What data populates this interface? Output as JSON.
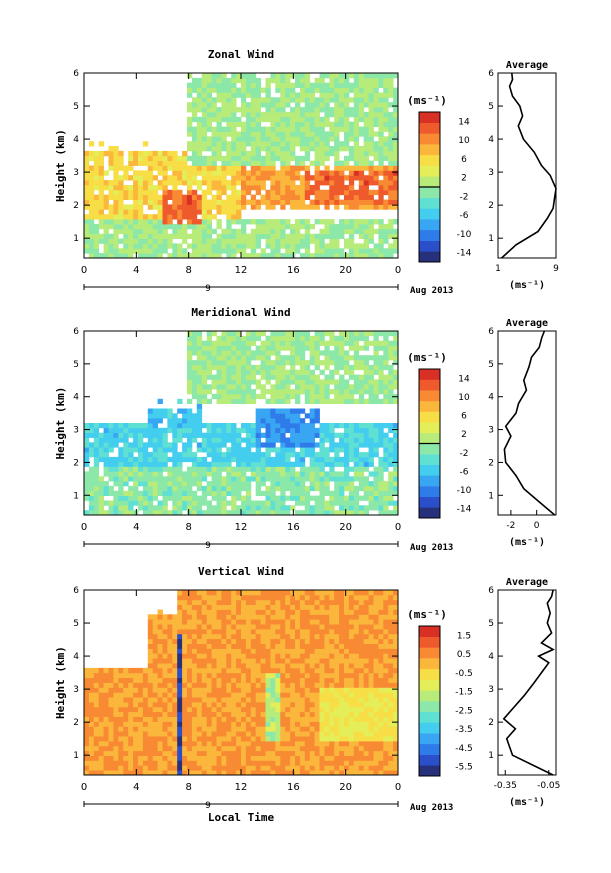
{
  "chart_data": [
    {
      "type": "heatmap",
      "title": "Zonal Wind",
      "ylabel": "Height (km)",
      "xticks": [
        "0",
        "4",
        "8",
        "12",
        "16",
        "20",
        "0"
      ],
      "xlim": [
        0,
        24
      ],
      "yticks": [
        "1",
        "2",
        "3",
        "4",
        "5",
        "6"
      ],
      "ylim": [
        0.4,
        6
      ],
      "date_marker": "9",
      "date_label": "Aug 2013",
      "colorbar": {
        "unit": "(ms⁻¹)",
        "ticks": [
          "14",
          "10",
          "6",
          "2",
          "-2",
          "-6",
          "-10",
          "-14"
        ],
        "range": [
          -16,
          16
        ],
        "contour": 0
      },
      "field": {
        "description_values": "wind speed (ms^-1) by local time and height",
        "regions": [
          {
            "x": [
              0,
              24
            ],
            "y": [
              0.4,
              1.6
            ],
            "value": 0
          },
          {
            "x": [
              0,
              12
            ],
            "y": [
              1.6,
              4.0
            ],
            "value": 6
          },
          {
            "x": [
              6,
              9
            ],
            "y": [
              1.4,
              2.5
            ],
            "value": 12
          },
          {
            "x": [
              12,
              24
            ],
            "y": [
              1.8,
              3.2
            ],
            "value": 9
          },
          {
            "x": [
              17,
              24
            ],
            "y": [
              2.0,
              3.0
            ],
            "value": 12
          },
          {
            "x": [
              8,
              24
            ],
            "y": [
              3.2,
              6.0
            ],
            "value": 0
          }
        ]
      },
      "average_profile": {
        "title": "Average",
        "xlabel": "(ms⁻¹)",
        "xticks": [
          "1",
          "9"
        ],
        "xlim": [
          1,
          9
        ],
        "ylim": [
          0.4,
          6
        ],
        "yticks": [
          "1",
          "2",
          "3",
          "4",
          "5",
          "6"
        ],
        "x": [
          1.5,
          3.5,
          6.5,
          7.8,
          8.6,
          8.8,
          9.0,
          8.2,
          7.0,
          6.0,
          4.5,
          3.8,
          4.4,
          4.0,
          3.0,
          2.6,
          3.0,
          2.9
        ],
        "y": [
          0.4,
          0.8,
          1.2,
          1.6,
          1.9,
          2.2,
          2.5,
          2.9,
          3.2,
          3.6,
          4.0,
          4.4,
          4.7,
          5.0,
          5.3,
          5.6,
          5.8,
          6.0
        ]
      }
    },
    {
      "type": "heatmap",
      "title": "Meridional Wind",
      "ylabel": "Height (km)",
      "xticks": [
        "0",
        "4",
        "8",
        "12",
        "16",
        "20",
        "0"
      ],
      "xlim": [
        0,
        24
      ],
      "yticks": [
        "1",
        "2",
        "3",
        "4",
        "5",
        "6"
      ],
      "ylim": [
        0.4,
        6
      ],
      "date_marker": "9",
      "date_label": "Aug 2013",
      "colorbar": {
        "unit": "(ms⁻¹)",
        "ticks": [
          "14",
          "10",
          "6",
          "2",
          "-2",
          "-6",
          "-10",
          "-14"
        ],
        "range": [
          -16,
          16
        ],
        "contour": 0
      },
      "field": {
        "regions": [
          {
            "x": [
              0,
              24
            ],
            "y": [
              0.4,
              1.8
            ],
            "value": -1
          },
          {
            "x": [
              0,
              24
            ],
            "y": [
              1.8,
              3.2
            ],
            "value": -5
          },
          {
            "x": [
              13,
              18
            ],
            "y": [
              2.4,
              3.6
            ],
            "value": -9
          },
          {
            "x": [
              5,
              9
            ],
            "y": [
              3.0,
              4.0
            ],
            "value": -6
          },
          {
            "x": [
              8,
              24
            ],
            "y": [
              3.8,
              6.0
            ],
            "value": 0
          }
        ]
      },
      "average_profile": {
        "title": "Average",
        "xlabel": "(ms⁻¹)",
        "xticks": [
          "-2",
          "0"
        ],
        "xlim": [
          -3,
          1.5
        ],
        "ylim": [
          0.4,
          6
        ],
        "yticks": [
          "1",
          "2",
          "3",
          "4",
          "5",
          "6"
        ],
        "x": [
          1.4,
          0.2,
          -1.0,
          -1.6,
          -2.4,
          -2.5,
          -2.0,
          -2.4,
          -1.6,
          -1.4,
          -0.8,
          -1.0,
          -0.6,
          -0.4,
          0.2,
          0.4,
          0.6
        ],
        "y": [
          0.4,
          0.8,
          1.2,
          1.6,
          2.0,
          2.4,
          2.8,
          3.1,
          3.5,
          3.8,
          4.2,
          4.5,
          4.9,
          5.2,
          5.5,
          5.8,
          6.0
        ]
      }
    },
    {
      "type": "heatmap",
      "title": "Vertical Wind",
      "ylabel": "Height (km)",
      "xlabel": "Local Time",
      "xticks": [
        "0",
        "4",
        "8",
        "12",
        "16",
        "20",
        "0"
      ],
      "xlim": [
        0,
        24
      ],
      "yticks": [
        "1",
        "2",
        "3",
        "4",
        "5",
        "6"
      ],
      "ylim": [
        0.4,
        6
      ],
      "date_marker": "9",
      "date_label": "Aug 2013",
      "colorbar": {
        "unit": "(ms⁻¹)",
        "ticks": [
          "1.5",
          "0.5",
          "-0.5",
          "-1.5",
          "-2.5",
          "-3.5",
          "-4.5",
          "-5.5"
        ],
        "range": [
          -6,
          2
        ]
      },
      "field": {
        "regions": [
          {
            "x": [
              0,
              24
            ],
            "y": [
              0.4,
              6.0
            ],
            "value": 0.3
          },
          {
            "x": [
              7.0,
              7.4
            ],
            "y": [
              0.4,
              4.6
            ],
            "value": -5.5
          },
          {
            "x": [
              14,
              15
            ],
            "y": [
              1.5,
              3.5
            ],
            "value": -1.8
          },
          {
            "x": [
              18,
              24
            ],
            "y": [
              1.5,
              3.0
            ],
            "value": -0.8
          }
        ]
      },
      "average_profile": {
        "title": "Average",
        "xlabel": "(ms⁻¹)",
        "xticks": [
          "-0.35",
          "-0.05"
        ],
        "xlim": [
          -0.4,
          0.0
        ],
        "ylim": [
          0.4,
          6
        ],
        "yticks": [
          "1",
          "2",
          "3",
          "4",
          "5",
          "6"
        ],
        "x": [
          -0.02,
          -0.3,
          -0.34,
          -0.28,
          -0.36,
          -0.3,
          -0.22,
          -0.15,
          -0.1,
          -0.05,
          -0.12,
          -0.02,
          -0.1,
          -0.03,
          -0.06,
          -0.04,
          -0.06,
          -0.03,
          -0.02
        ],
        "y": [
          0.4,
          1.0,
          1.5,
          1.8,
          2.1,
          2.4,
          2.8,
          3.2,
          3.5,
          3.8,
          4.0,
          4.2,
          4.4,
          4.7,
          5.0,
          5.3,
          5.6,
          5.8,
          6.0
        ]
      }
    }
  ]
}
